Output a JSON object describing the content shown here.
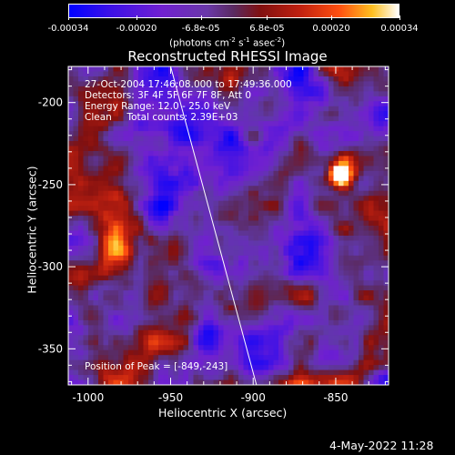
{
  "colorbar": {
    "tick_labels": [
      "-0.00034",
      "-0.00020",
      "-6.8e-05",
      "6.8e-05",
      "0.00020",
      "0.00034"
    ],
    "tick_values": [
      -0.00034,
      -0.0002,
      -6.8e-05,
      6.8e-05,
      0.0002,
      0.00034
    ],
    "range": [
      -0.00034,
      0.00034
    ],
    "units": "(photons cm",
    "units_sup1": "-2",
    "units_mid": " s",
    "units_sup2": "-1",
    "units_end": " asec",
    "units_sup3": "-2",
    "units_close": ")"
  },
  "chart_data": {
    "type": "heatmap",
    "title": "Reconstructed RHESSI Image",
    "xlabel": "Heliocentric X (arcsec)",
    "ylabel": "Heliocentric Y (arcsec)",
    "xlim": [
      -1012,
      -818
    ],
    "ylim": [
      -372,
      -178
    ],
    "x_ticks": [
      -1000,
      -950,
      -900,
      -850
    ],
    "x_tick_labels": [
      "-1000",
      "-950",
      "-900",
      "-850"
    ],
    "y_ticks": [
      -350,
      -300,
      -250,
      -200
    ],
    "y_tick_labels": [
      "-350",
      "-300",
      "-250",
      "-200"
    ],
    "colormap": "rhessi-image",
    "solar_limb_line": [
      [
        -950,
        -178
      ],
      [
        -898,
        -372
      ]
    ],
    "annotations": [
      "27-Oct-2004 17:46:08.000 to 17:49:36.000",
      "Detectors: 3F 4F 5F 6F 7F 8F, Att 0",
      "Energy Range: 12.0 - 25.0 keV",
      "Clean     Total counts: 2.39E+03"
    ],
    "peak_label": "Position of Peak = [-849,-243]",
    "peak": [
      -849,
      -243
    ],
    "colors": {
      "low": "#0000ff",
      "mid_low": "#7a28d0",
      "mid": "#6040a8",
      "warm": "#b01818",
      "hot": "#ff6010",
      "peak": "#ffffff"
    }
  },
  "footer": {
    "timestamp": "4-May-2022 11:28"
  }
}
